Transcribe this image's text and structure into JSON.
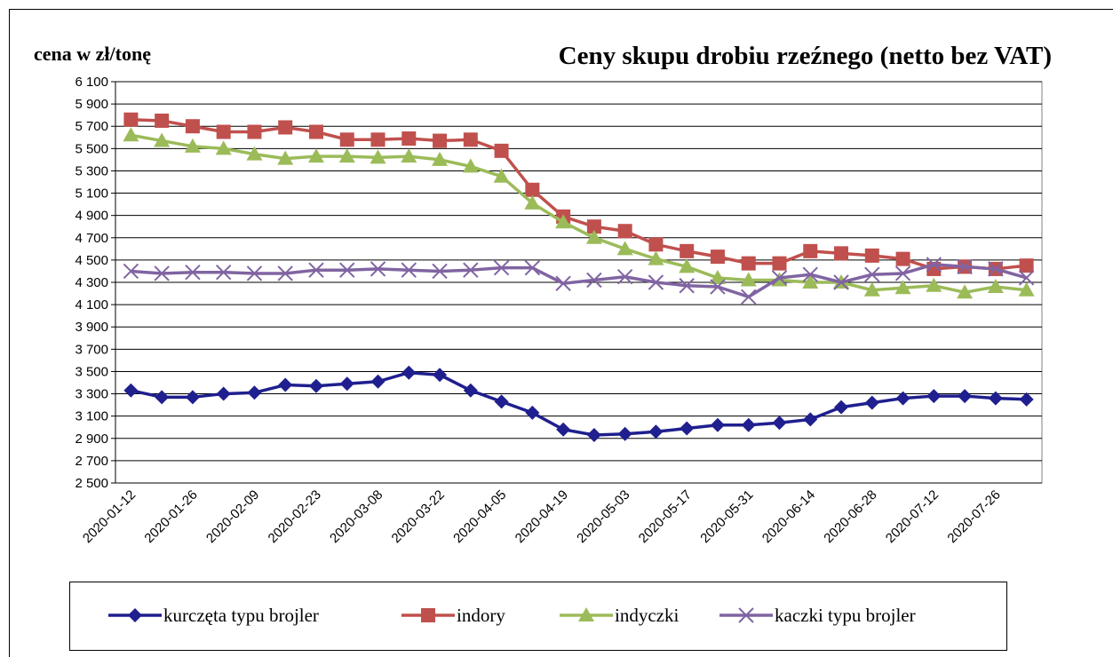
{
  "chart_data": {
    "type": "line",
    "title": "Ceny skupu drobiu rzeźnego (netto bez VAT)",
    "y_label": "cena w zł/tonę",
    "categories": [
      "2020-01-12",
      null,
      "2020-01-26",
      null,
      "2020-02-09",
      null,
      "2020-02-23",
      null,
      "2020-03-08",
      null,
      "2020-03-22",
      null,
      "2020-04-05",
      null,
      "2020-04-19",
      null,
      "2020-05-03",
      null,
      "2020-05-17",
      null,
      "2020-05-31",
      null,
      "2020-06-14",
      null,
      "2020-06-28",
      null,
      "2020-07-12",
      null,
      "2020-07-26",
      null
    ],
    "ylim": [
      2500,
      6100
    ],
    "yticks": [
      {
        "value": 2500,
        "label": "2 500"
      },
      {
        "value": 2700,
        "label": "2 700"
      },
      {
        "value": 2900,
        "label": "2 900"
      },
      {
        "value": 3100,
        "label": "3 100"
      },
      {
        "value": 3300,
        "label": "3 300"
      },
      {
        "value": 3500,
        "label": "3 500"
      },
      {
        "value": 3700,
        "label": "3 700"
      },
      {
        "value": 3900,
        "label": "3 900"
      },
      {
        "value": 4100,
        "label": "4 100"
      },
      {
        "value": 4300,
        "label": "4 300"
      },
      {
        "value": 4500,
        "label": "4 500"
      },
      {
        "value": 4700,
        "label": "4 700"
      },
      {
        "value": 4900,
        "label": "4 900"
      },
      {
        "value": 5100,
        "label": "5 100"
      },
      {
        "value": 5300,
        "label": "5 300"
      },
      {
        "value": 5500,
        "label": "5 500"
      },
      {
        "value": 5700,
        "label": "5 700"
      },
      {
        "value": 5900,
        "label": "5 900"
      },
      {
        "value": 6100,
        "label": "6 100"
      }
    ],
    "grid": true,
    "legend": "bottom",
    "series": [
      {
        "name": "kurczęta typu brojler",
        "color": "#1f1f8f",
        "marker": "diamond",
        "values": [
          3330,
          3270,
          3270,
          3300,
          3310,
          3380,
          3370,
          3390,
          3410,
          3490,
          3470,
          3330,
          3230,
          3130,
          2980,
          2930,
          2940,
          2960,
          2990,
          3020,
          3020,
          3040,
          3070,
          3180,
          3220,
          3260,
          3280,
          3280,
          3260,
          3250
        ]
      },
      {
        "name": "indory",
        "color": "#c0504d",
        "marker": "square",
        "values": [
          5760,
          5750,
          5700,
          5650,
          5650,
          5690,
          5650,
          5580,
          5580,
          5590,
          5570,
          5580,
          5480,
          5130,
          4890,
          4800,
          4760,
          4640,
          4580,
          4530,
          4470,
          4470,
          4580,
          4560,
          4540,
          4510,
          4420,
          4440,
          4420,
          4450
        ]
      },
      {
        "name": "indyczki",
        "color": "#9bbb59",
        "marker": "triangle",
        "values": [
          5620,
          5570,
          5520,
          5500,
          5450,
          5410,
          5430,
          5430,
          5420,
          5430,
          5400,
          5340,
          5250,
          5010,
          4840,
          4700,
          4600,
          4510,
          4440,
          4340,
          4320,
          4320,
          4300,
          4300,
          4230,
          4250,
          4270,
          4210,
          4260,
          4230
        ]
      },
      {
        "name": "kaczki typu brojler",
        "color": "#8064a2",
        "marker": "x",
        "values": [
          4400,
          4380,
          4390,
          4390,
          4380,
          4380,
          4410,
          4410,
          4420,
          4410,
          4400,
          4410,
          4430,
          4430,
          4290,
          4320,
          4350,
          4300,
          4270,
          4260,
          4170,
          4340,
          4370,
          4300,
          4370,
          4380,
          4460,
          4440,
          4420,
          4340
        ]
      }
    ]
  }
}
